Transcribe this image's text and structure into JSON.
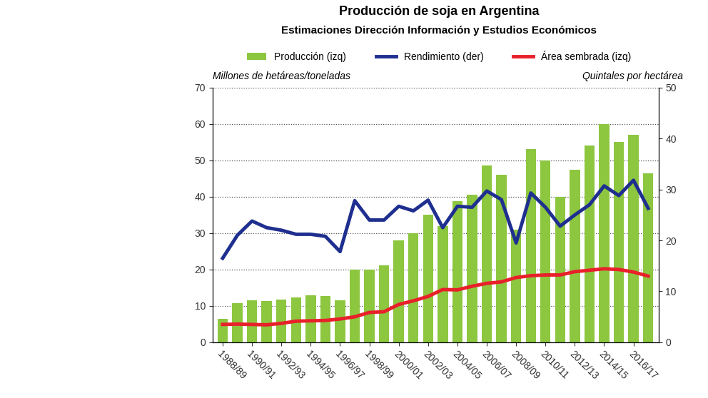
{
  "chart_data": {
    "type": "bar",
    "title": "Producción de soja en Argentina",
    "subtitle": "Estimaciones Dirección Información y Estudios Económicos",
    "y_label": "Millones de hetáreas/toneladas",
    "y2_label": "Quintales por hectárea",
    "categories": [
      "1988/89",
      null,
      "1990/91",
      null,
      "1992/93",
      null,
      "1994/95",
      null,
      "1996/97",
      null,
      "1998/99",
      null,
      "2000/01",
      null,
      "2002/03",
      null,
      "2004/05",
      null,
      "2006/07",
      null,
      "2008/09",
      null,
      "2010/11",
      null,
      "2012/13",
      null,
      "2014/15",
      null,
      "2016/17",
      null
    ],
    "series": [
      {
        "name": "Producción (izq)",
        "type": "bar",
        "color": "#8dc63f",
        "values": [
          6.5,
          10.7,
          11.5,
          11.3,
          11.7,
          12.4,
          13.0,
          12.7,
          11.6,
          20.0,
          20.0,
          21.2,
          28.0,
          30.0,
          35.0,
          32.0,
          38.8,
          40.5,
          48.5,
          46.0,
          31.0,
          53.0,
          50.0,
          40.0,
          47.5,
          54.0,
          60.0,
          55.0,
          57.0,
          46.5
        ]
      },
      {
        "name": "Rendimiento (der)",
        "type": "line",
        "color": "#1f2f8f",
        "axis": "y2",
        "values": [
          16.5,
          21.0,
          23.8,
          22.5,
          22.0,
          21.2,
          21.2,
          20.8,
          17.8,
          27.8,
          24.0,
          24.0,
          26.7,
          25.8,
          27.9,
          22.5,
          26.7,
          26.5,
          29.7,
          28.0,
          19.5,
          29.3,
          26.5,
          22.8,
          25.0,
          27.0,
          30.7,
          28.8,
          31.8,
          26.3
        ]
      },
      {
        "name": "Área sembrada (izq)",
        "type": "line",
        "color": "#e8202a",
        "values": [
          4.9,
          5.0,
          4.9,
          4.8,
          5.2,
          5.8,
          5.9,
          6.0,
          6.4,
          7.0,
          8.2,
          8.4,
          10.4,
          11.4,
          12.6,
          14.5,
          14.4,
          15.4,
          16.2,
          16.6,
          17.8,
          18.3,
          18.5,
          18.5,
          19.4,
          19.8,
          20.2,
          20.0,
          19.3,
          18.2
        ]
      }
    ],
    "ylim": [
      0,
      70
    ],
    "yticks": [
      0,
      10,
      20,
      30,
      40,
      50,
      60,
      70
    ],
    "y2lim": [
      0,
      50
    ],
    "y2ticks": [
      0,
      10,
      20,
      30,
      40,
      50
    ],
    "grid": true,
    "legend": "upper center"
  }
}
